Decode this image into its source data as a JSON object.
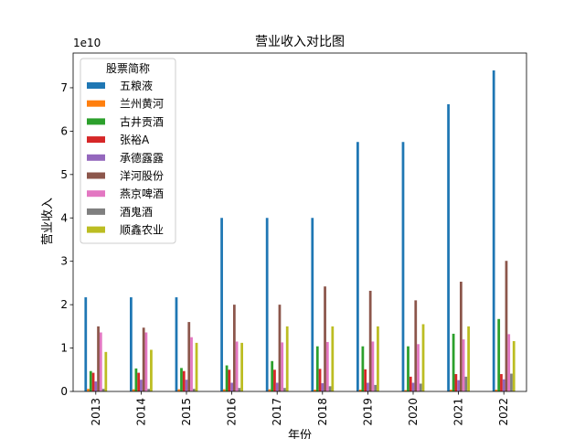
{
  "chart_data": {
    "type": "bar",
    "title": "营业收入对比图",
    "xlabel": "年份",
    "ylabel": "营业收入",
    "y_exponent_label": "1e10",
    "y_scale": 10000000000,
    "ylim": [
      0,
      7.8
    ],
    "yticks": [
      0,
      1,
      2,
      3,
      4,
      5,
      6,
      7
    ],
    "categories": [
      "2013",
      "2014",
      "2015",
      "2016",
      "2017",
      "2018",
      "2019",
      "2020",
      "2021",
      "2022"
    ],
    "legend": {
      "title": "股票简称",
      "position": "upper-left"
    },
    "grid": false,
    "series": [
      {
        "name": "五粮液",
        "color": "#1f77b4",
        "values": [
          2.17,
          2.17,
          2.17,
          4.0,
          4.0,
          4.0,
          5.75,
          5.75,
          6.62,
          7.4
        ]
      },
      {
        "name": "兰州黄河",
        "color": "#ff7f0e",
        "values": [
          0.06,
          0.05,
          0.05,
          0.05,
          0.05,
          0.04,
          0.04,
          0.03,
          0.04,
          0.04
        ]
      },
      {
        "name": "古井贡酒",
        "color": "#2ca02c",
        "values": [
          0.47,
          0.53,
          0.54,
          0.6,
          0.7,
          1.04,
          1.04,
          1.04,
          1.33,
          1.67
        ]
      },
      {
        "name": "张裕A",
        "color": "#d62728",
        "values": [
          0.43,
          0.43,
          0.47,
          0.5,
          0.5,
          0.52,
          0.51,
          0.34,
          0.4,
          0.4
        ]
      },
      {
        "name": "承德露露",
        "color": "#9467bd",
        "values": [
          0.23,
          0.27,
          0.27,
          0.2,
          0.2,
          0.19,
          0.2,
          0.2,
          0.26,
          0.28
        ]
      },
      {
        "name": "洋河股份",
        "color": "#8c564b",
        "values": [
          1.5,
          1.47,
          1.6,
          2.0,
          2.0,
          2.42,
          2.32,
          2.1,
          2.53,
          3.01
        ]
      },
      {
        "name": "燕京啤酒",
        "color": "#e377c2",
        "values": [
          1.36,
          1.36,
          1.25,
          1.15,
          1.13,
          1.14,
          1.15,
          1.09,
          1.2,
          1.32
        ]
      },
      {
        "name": "酒鬼酒",
        "color": "#7f7f7f",
        "values": [
          0.06,
          0.06,
          0.06,
          0.08,
          0.08,
          0.12,
          0.15,
          0.18,
          0.34,
          0.41
        ]
      },
      {
        "name": "顺鑫农业",
        "color": "#bcbd22",
        "values": [
          0.91,
          0.96,
          1.12,
          1.12,
          1.5,
          1.5,
          1.5,
          1.55,
          1.5,
          1.16
        ]
      }
    ]
  }
}
